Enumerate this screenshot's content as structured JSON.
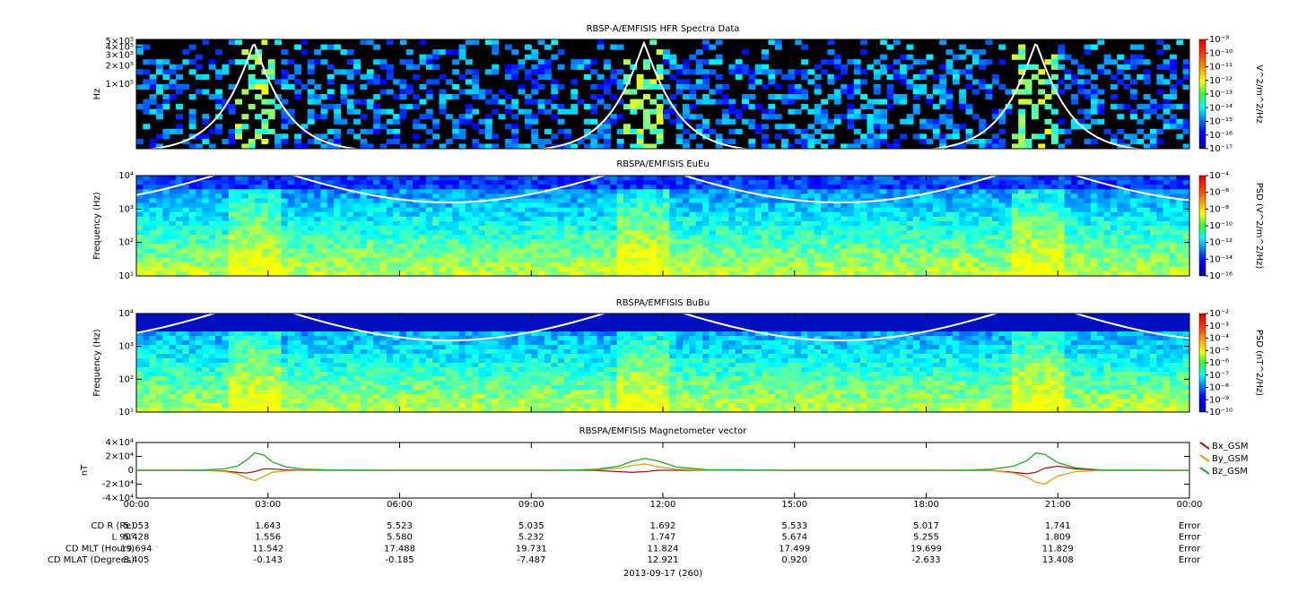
{
  "chart_data": [
    {
      "type": "spectrogram",
      "title": "RBSP-A/EMFISIS  HFR Spectra Data",
      "y_label": "Hz",
      "log_y": true,
      "ylim": [
        9000,
        535000
      ],
      "yticks": [
        {
          "value": 100000,
          "label": "1×10⁵"
        },
        {
          "value": 200000,
          "label": "2×10⁵"
        },
        {
          "value": 300000,
          "label": "3×10⁵"
        },
        {
          "value": 400000,
          "label": "4×10⁵"
        },
        {
          "value": 500000,
          "label": "5×10⁵"
        }
      ],
      "colorbar": {
        "label": "V^2/m^2/Hz",
        "lim": [
          1e-17,
          1e-09
        ],
        "ticks": [
          {
            "value": 1e-09,
            "label": "10⁻⁹"
          },
          {
            "value": 1e-10,
            "label": "10⁻¹⁰"
          },
          {
            "value": 1e-11,
            "label": "10⁻¹¹"
          },
          {
            "value": 1e-12,
            "label": "10⁻¹²"
          },
          {
            "value": 1e-13,
            "label": "10⁻¹³"
          },
          {
            "value": 1e-14,
            "label": "10⁻¹⁴"
          },
          {
            "value": 1e-15,
            "label": "10⁻¹⁵"
          },
          {
            "value": 1e-16,
            "label": "10⁻¹⁶"
          },
          {
            "value": 1e-17,
            "label": "10⁻¹⁷"
          }
        ]
      }
    },
    {
      "type": "spectrogram",
      "title": "RBSPA/EMFISIS  EuEu",
      "y_label": "Frequency (Hz)",
      "log_y": true,
      "ylim": [
        10,
        10000
      ],
      "yticks": [
        {
          "value": 10,
          "label": "10¹"
        },
        {
          "value": 100,
          "label": "10²"
        },
        {
          "value": 1000,
          "label": "10³"
        },
        {
          "value": 10000,
          "label": "10⁴"
        }
      ],
      "colorbar": {
        "label": "PSD (V^2/m^2/Hz)",
        "lim": [
          1e-16,
          0.0001
        ],
        "ticks": [
          {
            "value": 0.0001,
            "label": "10⁻⁴"
          },
          {
            "value": 1e-06,
            "label": "10⁻⁶"
          },
          {
            "value": 1e-08,
            "label": "10⁻⁸"
          },
          {
            "value": 1e-10,
            "label": "10⁻¹⁰"
          },
          {
            "value": 1e-12,
            "label": "10⁻¹²"
          },
          {
            "value": 1e-14,
            "label": "10⁻¹⁴"
          },
          {
            "value": 1e-16,
            "label": "10⁻¹⁶"
          }
        ]
      }
    },
    {
      "type": "spectrogram",
      "title": "RBSPA/EMFISIS  BuBu",
      "y_label": "Frequency (Hz)",
      "log_y": true,
      "ylim": [
        10,
        10000
      ],
      "yticks": [
        {
          "value": 10,
          "label": "10¹"
        },
        {
          "value": 100,
          "label": "10²"
        },
        {
          "value": 1000,
          "label": "10³"
        },
        {
          "value": 10000,
          "label": "10⁴"
        }
      ],
      "colorbar": {
        "label": "PSD (nT^2/Hz)",
        "lim": [
          1e-10,
          0.01
        ],
        "ticks": [
          {
            "value": 0.01,
            "label": "10⁻²"
          },
          {
            "value": 0.001,
            "label": "10⁻³"
          },
          {
            "value": 0.0001,
            "label": "10⁻⁴"
          },
          {
            "value": 1e-05,
            "label": "10⁻⁵"
          },
          {
            "value": 1e-06,
            "label": "10⁻⁶"
          },
          {
            "value": 1e-07,
            "label": "10⁻⁷"
          },
          {
            "value": 1e-08,
            "label": "10⁻⁸"
          },
          {
            "value": 1e-09,
            "label": "10⁻⁹"
          },
          {
            "value": 1e-10,
            "label": "10⁻¹⁰"
          }
        ]
      }
    },
    {
      "type": "line",
      "title": "RBSPA/EMFISIS  Magnetometer vector",
      "y_label": "nT",
      "ylim": [
        -40000,
        40000
      ],
      "yticks": [
        {
          "value": -40000,
          "label": "-4×10⁴"
        },
        {
          "value": -20000,
          "label": "-2×10⁴"
        },
        0,
        {
          "value": 20000,
          "label": "2×10⁴"
        },
        {
          "value": 40000,
          "label": "4×10⁴"
        }
      ],
      "xlim": [
        0,
        24
      ],
      "xticks": [
        {
          "value": 0,
          "label": "00:00"
        },
        {
          "value": 3,
          "label": "03:00"
        },
        {
          "value": 6,
          "label": "06:00"
        },
        {
          "value": 9,
          "label": "09:00"
        },
        {
          "value": 12,
          "label": "12:00"
        },
        {
          "value": 15,
          "label": "15:00"
        },
        {
          "value": 18,
          "label": "18:00"
        },
        {
          "value": 21,
          "label": "21:00"
        },
        {
          "value": 24,
          "label": "00:00"
        }
      ],
      "x": [
        0,
        1,
        1.5,
        2,
        2.3,
        2.5,
        2.7,
        2.9,
        3.1,
        3.4,
        3.8,
        4.5,
        6,
        9,
        10,
        10.5,
        11,
        11.3,
        11.6,
        11.9,
        12.3,
        13,
        15,
        18,
        19,
        19.5,
        20,
        20.3,
        20.5,
        20.7,
        21,
        21.4,
        22,
        24
      ],
      "series": [
        {
          "name": "Bx_GSM",
          "color": "#a01818",
          "values": [
            0,
            0,
            0,
            -1000,
            -3000,
            -4000,
            -2000,
            2000,
            2000,
            500,
            0,
            0,
            0,
            0,
            0,
            -500,
            -2000,
            -3000,
            -2000,
            0,
            0,
            0,
            0,
            0,
            0,
            -500,
            -3000,
            -5000,
            -3000,
            3000,
            6000,
            2000,
            0,
            0
          ]
        },
        {
          "name": "By_GSM",
          "color": "#d4a017",
          "values": [
            0,
            0,
            -200,
            -1500,
            -5000,
            -11000,
            -15000,
            -9000,
            -3000,
            -800,
            -200,
            0,
            0,
            0,
            0,
            500,
            3000,
            7000,
            9000,
            5000,
            1500,
            200,
            0,
            0,
            0,
            -500,
            -4000,
            -10000,
            -17000,
            -20000,
            -8000,
            -2000,
            -300,
            0
          ]
        },
        {
          "name": "Bz_GSM",
          "color": "#2ca02c",
          "values": [
            0,
            0,
            200,
            2000,
            6000,
            14000,
            25000,
            22000,
            12000,
            5000,
            1500,
            300,
            0,
            0,
            200,
            1500,
            6000,
            13000,
            17000,
            13000,
            5000,
            800,
            0,
            0,
            200,
            1500,
            6000,
            14000,
            25000,
            23000,
            11000,
            3500,
            500,
            0
          ]
        }
      ]
    }
  ],
  "ephemeris": {
    "rows": [
      {
        "label": "CD R (Re)",
        "values": [
          "5.053",
          "1.643",
          "5.523",
          "5.035",
          "1.692",
          "5.533",
          "5.017",
          "1.741",
          "Error"
        ]
      },
      {
        "label": "L 90⁰",
        "values": [
          "5.428",
          "1.556",
          "5.580",
          "5.232",
          "1.747",
          "5.674",
          "5.255",
          "1.809",
          "Error"
        ]
      },
      {
        "label": "CD MLT (Hours)",
        "values": [
          "19.694",
          "11.542",
          "17.488",
          "19.731",
          "11.824",
          "17.499",
          "19.699",
          "11.829",
          "Error"
        ]
      },
      {
        "label": "CD MLAT (Degrees)",
        "values": [
          "8.405",
          "-0.143",
          "-0.185",
          "-7.487",
          "12.921",
          "0.920",
          "-2.633",
          "13.408",
          "Error"
        ]
      }
    ],
    "date": "2013-09-17 (260)"
  }
}
